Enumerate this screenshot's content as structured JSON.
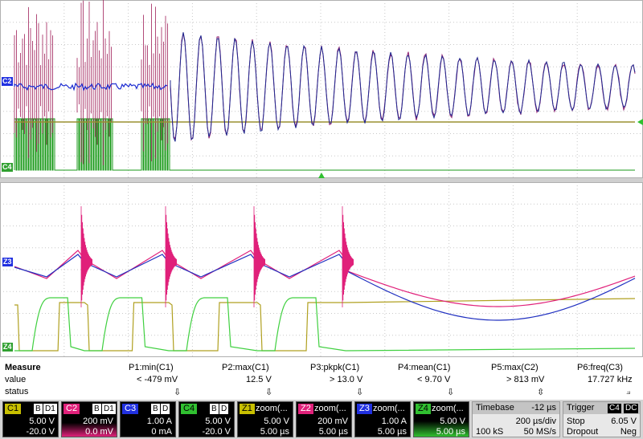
{
  "markers": {
    "top_c2": "C2",
    "top_c4": "C4",
    "bot_z3": "Z3",
    "bot_z4": "Z4"
  },
  "measure": {
    "row_labels": {
      "title": "Measure",
      "value": "value",
      "status": "status"
    },
    "params": [
      {
        "name": "P1:min(C1)",
        "value": "< -479 mV",
        "status": "⇩"
      },
      {
        "name": "P2:max(C1)",
        "value": "12.5 V",
        "status": "⇩"
      },
      {
        "name": "P3:pkpk(C1)",
        "value": "> 13.0 V",
        "status": "⇩"
      },
      {
        "name": "P4:mean(C1)",
        "value": "< 9.70 V",
        "status": "⇩"
      },
      {
        "name": "P5:max(C2)",
        "value": "> 813 mV",
        "status": "⇳"
      },
      {
        "name": "P6:freq(C3)",
        "value": "17.727 kHz",
        "status": "⟓"
      }
    ]
  },
  "channels": [
    {
      "tag": "C1",
      "badges": [
        "B",
        "D1"
      ],
      "line1": "5.00 V",
      "line2": "-20.0 V",
      "color": "#c8c000"
    },
    {
      "tag": "C2",
      "badges": [
        "B",
        "D1"
      ],
      "line1": "200 mV",
      "line2": "0.0 mV",
      "color": "#e0207a"
    },
    {
      "tag": "C3",
      "badges": [
        "B",
        "D"
      ],
      "line1": "1.00 A",
      "line2": "0 mA",
      "color": "#2030e0"
    },
    {
      "tag": "C4",
      "badges": [
        "B",
        "D"
      ],
      "line1": "5.00 V",
      "line2": "-20.0 V",
      "color": "#30c030"
    },
    {
      "tag": "Z1",
      "title": "zoom(...",
      "line1": "5.00 V",
      "line2": "5.00 µs",
      "color": "#c8c000"
    },
    {
      "tag": "Z2",
      "title": "zoom(...",
      "line1": "200 mV",
      "line2": "5.00 µs",
      "color": "#e0207a"
    },
    {
      "tag": "Z3",
      "title": "zoom(...",
      "line1": "1.00 A",
      "line2": "5.00 µs",
      "color": "#2030e0"
    },
    {
      "tag": "Z4",
      "title": "zoom(...",
      "line1": "5.00 V",
      "line2": "5.00 µs",
      "color": "#30c030"
    }
  ],
  "timebase": {
    "label": "Timebase",
    "offset": "-12 µs",
    "per_div": "200 µs/div",
    "samples": "100 kS",
    "rate": "50 MS/s"
  },
  "trigger": {
    "label": "Trigger",
    "badge": "C4",
    "badge2": "DC",
    "mode": "Stop",
    "level": "6.05 V",
    "type": "Dropout",
    "slope": "Neg"
  }
}
